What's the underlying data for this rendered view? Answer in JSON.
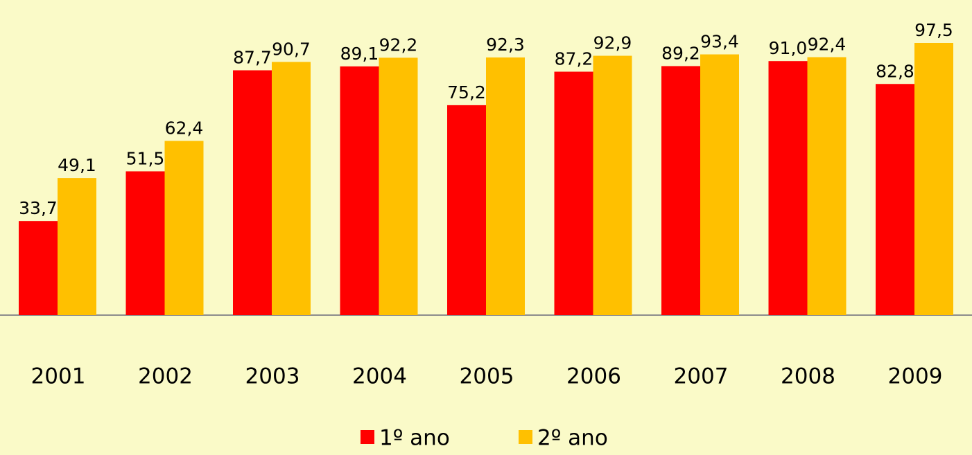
{
  "chart_data": {
    "type": "bar",
    "categories": [
      "2001",
      "2002",
      "2003",
      "2004",
      "2005",
      "2006",
      "2007",
      "2008",
      "2009"
    ],
    "series": [
      {
        "name": "1º ano",
        "color": "#ff0000",
        "values": [
          33.7,
          51.5,
          87.7,
          89.1,
          75.2,
          87.2,
          89.2,
          91.0,
          82.8
        ],
        "value_labels": [
          "33,7",
          "51,5",
          "87,7",
          "89,1",
          "75,2",
          "87,2",
          "89,2",
          "91,0",
          "82,8"
        ]
      },
      {
        "name": "2º ano",
        "color": "#ffc000",
        "values": [
          49.1,
          62.4,
          90.7,
          92.2,
          92.3,
          92.9,
          93.4,
          92.4,
          97.5
        ],
        "value_labels": [
          "49,1",
          "62,4",
          "90,7",
          "92,2",
          "92,3",
          "92,9",
          "93,4",
          "92,4",
          "97,5"
        ]
      }
    ],
    "legend": "bottom"
  }
}
